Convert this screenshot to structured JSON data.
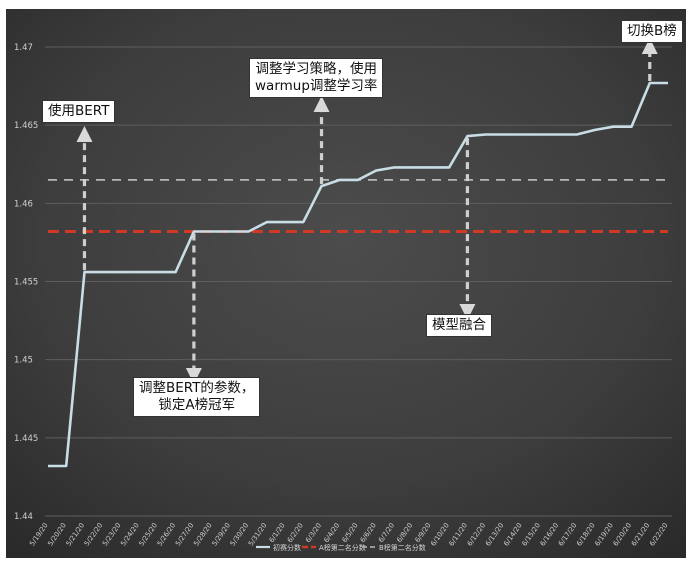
{
  "chart_data": {
    "type": "line",
    "title": "",
    "xlabel": "",
    "ylabel": "",
    "ylim": [
      1.44,
      1.47
    ],
    "yticks": [
      1.44,
      1.445,
      1.45,
      1.455,
      1.46,
      1.465,
      1.47
    ],
    "ytick_labels": [
      "1.44",
      "1.445",
      "1.45",
      "1.455",
      "1.46",
      "1.465",
      "1.47"
    ],
    "grid": true,
    "legend_position": "bottom",
    "x": [
      "5/19/20",
      "5/20/20",
      "5/21/20",
      "5/22/20",
      "5/23/20",
      "5/24/20",
      "5/25/20",
      "5/26/20",
      "5/27/20",
      "5/28/20",
      "5/29/20",
      "5/30/20",
      "5/31/20",
      "6/1/20",
      "6/2/20",
      "6/3/20",
      "6/4/20",
      "6/5/20",
      "6/6/20",
      "6/7/20",
      "6/8/20",
      "6/9/20",
      "6/10/20",
      "6/11/20",
      "6/12/20",
      "6/13/20",
      "6/14/20",
      "6/15/20",
      "6/16/20",
      "6/17/20",
      "6/18/20",
      "6/19/20",
      "6/20/20",
      "6/21/20",
      "6/22/20"
    ],
    "series": [
      {
        "name": "初赛分数",
        "style": "solid",
        "color": "#c9dde6",
        "values": [
          1.4432,
          1.4432,
          1.4556,
          1.4556,
          1.4556,
          1.4556,
          1.4556,
          1.4556,
          1.4582,
          1.4582,
          1.4582,
          1.4582,
          1.4588,
          1.4588,
          1.4588,
          1.4611,
          1.4615,
          1.4615,
          1.4621,
          1.4623,
          1.4623,
          1.4623,
          1.4623,
          1.4643,
          1.4644,
          1.4644,
          1.4644,
          1.4644,
          1.4644,
          1.4644,
          1.4647,
          1.4649,
          1.4649,
          1.4677,
          1.4677
        ]
      },
      {
        "name": "A榜第二名分数",
        "style": "dashed",
        "color": "#d03a24",
        "values": [
          1.4582,
          1.4582,
          1.4582,
          1.4582,
          1.4582,
          1.4582,
          1.4582,
          1.4582,
          1.4582,
          1.4582,
          1.4582,
          1.4582,
          1.4582,
          1.4582,
          1.4582,
          1.4582,
          1.4582,
          1.4582,
          1.4582,
          1.4582,
          1.4582,
          1.4582,
          1.4582,
          1.4582,
          1.4582,
          1.4582,
          1.4582,
          1.4582,
          1.4582,
          1.4582,
          1.4582,
          1.4582,
          1.4582,
          1.4582,
          1.4582
        ]
      },
      {
        "name": "B榜第二名分数",
        "style": "dashed",
        "color": "#b7b7b7",
        "values": [
          1.4615,
          1.4615,
          1.4615,
          1.4615,
          1.4615,
          1.4615,
          1.4615,
          1.4615,
          1.4615,
          1.4615,
          1.4615,
          1.4615,
          1.4615,
          1.4615,
          1.4615,
          1.4615,
          1.4615,
          1.4615,
          1.4615,
          1.4615,
          1.4615,
          1.4615,
          1.4615,
          1.4615,
          1.4615,
          1.4615,
          1.4615,
          1.4615,
          1.4615,
          1.4615,
          1.4615,
          1.4615,
          1.4615,
          1.4615,
          1.4615
        ]
      }
    ],
    "annotations": [
      {
        "id": "bert",
        "lines": [
          "使用BERT"
        ],
        "x_index": 2,
        "y": 1.4556,
        "arrow": "up"
      },
      {
        "id": "params",
        "lines": [
          "调整BERT的参数，",
          "锁定A榜冠军"
        ],
        "x_index": 8,
        "y": 1.4582,
        "arrow": "down"
      },
      {
        "id": "warmup",
        "lines": [
          "调整学习策略，使用",
          "warmup调整学习率"
        ],
        "x_index": 15,
        "y": 1.4611,
        "arrow": "up"
      },
      {
        "id": "ensemble",
        "lines": [
          "模型融合"
        ],
        "x_index": 23,
        "y": 1.4643,
        "arrow": "down"
      },
      {
        "id": "switchb",
        "lines": [
          "切换B榜"
        ],
        "x_index": 33,
        "y": 1.4677,
        "arrow": "up"
      }
    ]
  }
}
